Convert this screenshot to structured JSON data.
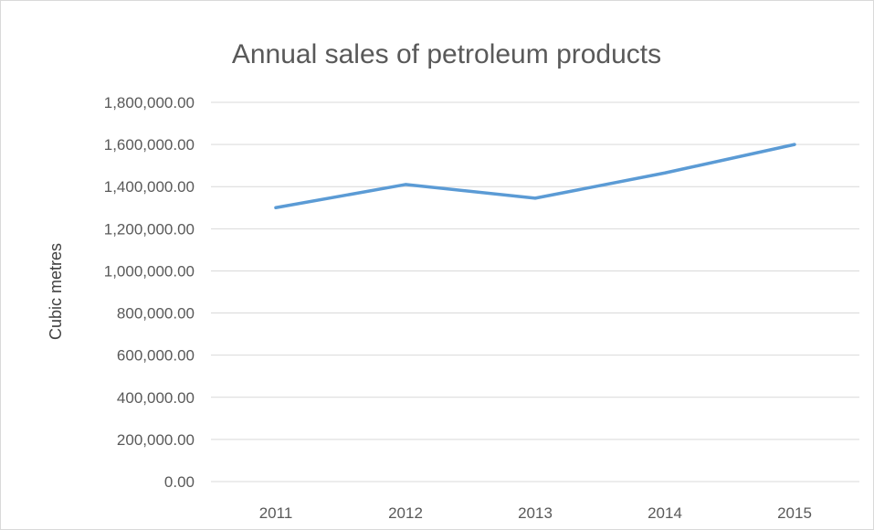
{
  "chart_data": {
    "type": "line",
    "title": "Annual sales of petroleum products",
    "xlabel": "",
    "ylabel": "Cubic metres",
    "categories": [
      "2011",
      "2012",
      "2013",
      "2014",
      "2015"
    ],
    "series": [
      {
        "values": [
          1300000,
          1410000,
          1345000,
          1465000,
          1600000
        ],
        "color": "#5b9bd5"
      }
    ],
    "ylim": [
      0,
      1800000
    ],
    "yticks": [
      0,
      200000,
      400000,
      600000,
      800000,
      1000000,
      1200000,
      1400000,
      1600000,
      1800000
    ],
    "ytick_labels": [
      "0.00",
      "200,000.00",
      "400,000.00",
      "600,000.00",
      "800,000.00",
      "1,000,000.00",
      "1,200,000.00",
      "1,400,000.00",
      "1,600,000.00",
      "1,800,000.00"
    ],
    "grid": true,
    "legend": "none"
  }
}
